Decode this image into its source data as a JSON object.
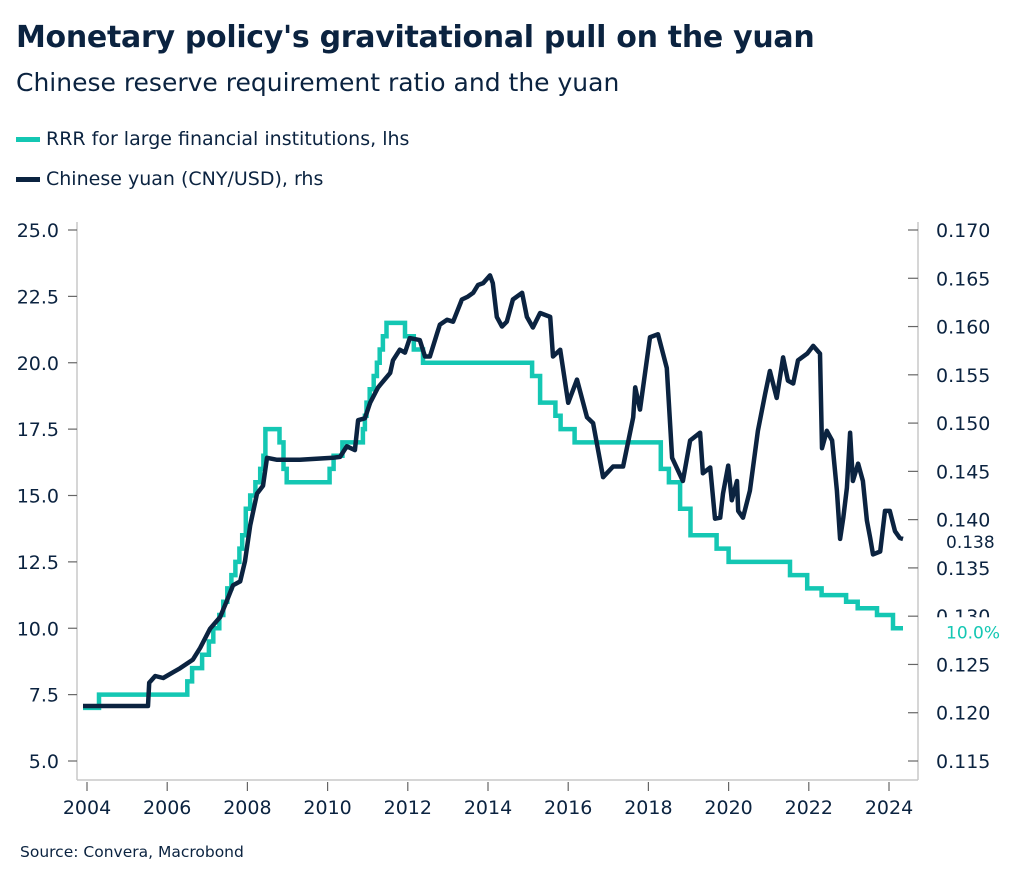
{
  "header": {
    "title": "Monetary policy's gravitational pull on the yuan",
    "subtitle": "Chinese reserve requirement ratio and the yuan"
  },
  "source": "Source: Convera, Macrobond",
  "colors": {
    "rrr": "#14c7b3",
    "yuan": "#0b2340",
    "axis": "#c8c8c8",
    "text": "#0b2340"
  },
  "chart_data": {
    "type": "line",
    "title": "Monetary policy's gravitational pull on the yuan",
    "subtitle": "Chinese reserve requirement ratio and the yuan",
    "legend_position": "top-left",
    "grid": false,
    "x_axis": {
      "range": [
        2004,
        2024.4
      ],
      "ticks": [
        "2004",
        "2006",
        "2008",
        "2010",
        "2012",
        "2014",
        "2016",
        "2018",
        "2020",
        "2022",
        "2024"
      ]
    },
    "left_axis": {
      "range": [
        5.0,
        25.0
      ],
      "ticks": [
        "5.0",
        "7.5",
        "10.0",
        "12.5",
        "15.0",
        "17.5",
        "20.0",
        "22.5",
        "25.0"
      ]
    },
    "right_axis": {
      "range": [
        0.115,
        0.17
      ],
      "ticks": [
        "0.115",
        "0.120",
        "0.125",
        "0.130",
        "0.135",
        "0.140",
        "0.145",
        "0.150",
        "0.155",
        "0.160",
        "0.165",
        "0.170"
      ]
    },
    "series": [
      {
        "name": "RRR for large financial institutions, lhs",
        "axis": "left",
        "style": "step",
        "end_label": "10.0%",
        "points": [
          [
            2003.9,
            7.0
          ],
          [
            2004.3,
            7.5
          ],
          [
            2006.5,
            8.0
          ],
          [
            2006.62,
            8.5
          ],
          [
            2006.87,
            9.0
          ],
          [
            2007.04,
            9.5
          ],
          [
            2007.15,
            10.0
          ],
          [
            2007.3,
            10.5
          ],
          [
            2007.4,
            11.0
          ],
          [
            2007.5,
            11.5
          ],
          [
            2007.6,
            12.0
          ],
          [
            2007.7,
            12.5
          ],
          [
            2007.8,
            13.0
          ],
          [
            2007.87,
            13.5
          ],
          [
            2007.96,
            14.5
          ],
          [
            2008.07,
            15.0
          ],
          [
            2008.2,
            15.5
          ],
          [
            2008.32,
            16.0
          ],
          [
            2008.4,
            16.5
          ],
          [
            2008.45,
            17.5
          ],
          [
            2008.8,
            17.0
          ],
          [
            2008.9,
            16.0
          ],
          [
            2008.98,
            15.5
          ],
          [
            2010.05,
            16.0
          ],
          [
            2010.15,
            16.5
          ],
          [
            2010.37,
            17.0
          ],
          [
            2010.88,
            17.5
          ],
          [
            2010.93,
            18.0
          ],
          [
            2010.97,
            18.5
          ],
          [
            2011.05,
            19.0
          ],
          [
            2011.15,
            19.5
          ],
          [
            2011.23,
            20.0
          ],
          [
            2011.3,
            20.5
          ],
          [
            2011.38,
            21.0
          ],
          [
            2011.47,
            21.5
          ],
          [
            2011.93,
            21.0
          ],
          [
            2012.15,
            20.5
          ],
          [
            2012.38,
            20.0
          ],
          [
            2015.1,
            19.5
          ],
          [
            2015.3,
            18.5
          ],
          [
            2015.68,
            18.0
          ],
          [
            2015.81,
            17.5
          ],
          [
            2016.16,
            17.0
          ],
          [
            2018.31,
            16.0
          ],
          [
            2018.51,
            15.5
          ],
          [
            2018.79,
            14.5
          ],
          [
            2019.05,
            13.5
          ],
          [
            2019.7,
            13.0
          ],
          [
            2020.0,
            12.5
          ],
          [
            2021.53,
            12.0
          ],
          [
            2021.96,
            11.5
          ],
          [
            2022.32,
            11.25
          ],
          [
            2022.93,
            11.0
          ],
          [
            2023.22,
            10.75
          ],
          [
            2023.7,
            10.5
          ],
          [
            2024.1,
            10.0
          ],
          [
            2024.35,
            10.0
          ]
        ]
      },
      {
        "name": "Chinese yuan (CNY/USD), rhs",
        "axis": "right",
        "style": "line",
        "end_label": "0.138",
        "points": [
          [
            2003.9,
            0.1207
          ],
          [
            2005.52,
            0.1207
          ],
          [
            2005.55,
            0.1231
          ],
          [
            2005.7,
            0.1238
          ],
          [
            2005.9,
            0.1236
          ],
          [
            2006.15,
            0.1242
          ],
          [
            2006.32,
            0.1246
          ],
          [
            2006.64,
            0.1255
          ],
          [
            2006.82,
            0.1267
          ],
          [
            2007.07,
            0.1287
          ],
          [
            2007.32,
            0.1299
          ],
          [
            2007.49,
            0.1316
          ],
          [
            2007.64,
            0.1332
          ],
          [
            2007.82,
            0.1336
          ],
          [
            2007.94,
            0.1357
          ],
          [
            2008.07,
            0.1394
          ],
          [
            2008.24,
            0.1427
          ],
          [
            2008.39,
            0.1435
          ],
          [
            2008.49,
            0.1464
          ],
          [
            2008.74,
            0.1462
          ],
          [
            2009.31,
            0.1462
          ],
          [
            2010.13,
            0.1464
          ],
          [
            2010.31,
            0.1465
          ],
          [
            2010.48,
            0.1476
          ],
          [
            2010.68,
            0.1472
          ],
          [
            2010.76,
            0.1503
          ],
          [
            2010.93,
            0.1505
          ],
          [
            2011.06,
            0.1521
          ],
          [
            2011.26,
            0.1537
          ],
          [
            2011.56,
            0.1552
          ],
          [
            2011.63,
            0.1565
          ],
          [
            2011.8,
            0.1576
          ],
          [
            2011.93,
            0.1573
          ],
          [
            2012.05,
            0.1588
          ],
          [
            2012.3,
            0.1586
          ],
          [
            2012.43,
            0.1569
          ],
          [
            2012.55,
            0.1569
          ],
          [
            2012.73,
            0.1593
          ],
          [
            2012.8,
            0.1602
          ],
          [
            2012.98,
            0.1607
          ],
          [
            2013.13,
            0.1605
          ],
          [
            2013.35,
            0.1628
          ],
          [
            2013.5,
            0.1631
          ],
          [
            2013.63,
            0.1635
          ],
          [
            2013.75,
            0.1643
          ],
          [
            2013.88,
            0.1645
          ],
          [
            2014.05,
            0.1653
          ],
          [
            2014.12,
            0.1645
          ],
          [
            2014.22,
            0.161
          ],
          [
            2014.35,
            0.16
          ],
          [
            2014.47,
            0.1605
          ],
          [
            2014.62,
            0.1628
          ],
          [
            2014.85,
            0.1635
          ],
          [
            2014.97,
            0.161
          ],
          [
            2015.12,
            0.1599
          ],
          [
            2015.3,
            0.1614
          ],
          [
            2015.55,
            0.161
          ],
          [
            2015.62,
            0.1569
          ],
          [
            2015.8,
            0.1576
          ],
          [
            2016.0,
            0.1521
          ],
          [
            2016.22,
            0.1545
          ],
          [
            2016.47,
            0.1506
          ],
          [
            2016.62,
            0.15
          ],
          [
            2016.87,
            0.1444
          ],
          [
            2017.12,
            0.1455
          ],
          [
            2017.37,
            0.1455
          ],
          [
            2017.62,
            0.1506
          ],
          [
            2017.67,
            0.1537
          ],
          [
            2017.79,
            0.1514
          ],
          [
            2018.04,
            0.1589
          ],
          [
            2018.24,
            0.1592
          ],
          [
            2018.46,
            0.1557
          ],
          [
            2018.59,
            0.1464
          ],
          [
            2018.86,
            0.144
          ],
          [
            2019.04,
            0.1482
          ],
          [
            2019.29,
            0.149
          ],
          [
            2019.36,
            0.1448
          ],
          [
            2019.54,
            0.1454
          ],
          [
            2019.66,
            0.1401
          ],
          [
            2019.79,
            0.1402
          ],
          [
            2019.86,
            0.1427
          ],
          [
            2019.99,
            0.1456
          ],
          [
            2020.08,
            0.142
          ],
          [
            2020.21,
            0.144
          ],
          [
            2020.24,
            0.1409
          ],
          [
            2020.36,
            0.1402
          ],
          [
            2020.53,
            0.143
          ],
          [
            2020.73,
            0.1492
          ],
          [
            2020.91,
            0.153
          ],
          [
            2021.03,
            0.1554
          ],
          [
            2021.2,
            0.1526
          ],
          [
            2021.36,
            0.1568
          ],
          [
            2021.48,
            0.1544
          ],
          [
            2021.61,
            0.1541
          ],
          [
            2021.73,
            0.1565
          ],
          [
            2021.96,
            0.1572
          ],
          [
            2022.11,
            0.158
          ],
          [
            2022.28,
            0.1572
          ],
          [
            2022.33,
            0.1474
          ],
          [
            2022.45,
            0.1492
          ],
          [
            2022.58,
            0.1482
          ],
          [
            2022.7,
            0.143
          ],
          [
            2022.78,
            0.138
          ],
          [
            2022.86,
            0.1402
          ],
          [
            2022.95,
            0.1433
          ],
          [
            2023.03,
            0.149
          ],
          [
            2023.1,
            0.144
          ],
          [
            2023.23,
            0.1458
          ],
          [
            2023.35,
            0.144
          ],
          [
            2023.45,
            0.1399
          ],
          [
            2023.53,
            0.1381
          ],
          [
            2023.6,
            0.1364
          ],
          [
            2023.78,
            0.1367
          ],
          [
            2023.9,
            0.1409
          ],
          [
            2024.02,
            0.1409
          ],
          [
            2024.15,
            0.1388
          ],
          [
            2024.27,
            0.1381
          ],
          [
            2024.35,
            0.138
          ]
        ]
      }
    ]
  }
}
